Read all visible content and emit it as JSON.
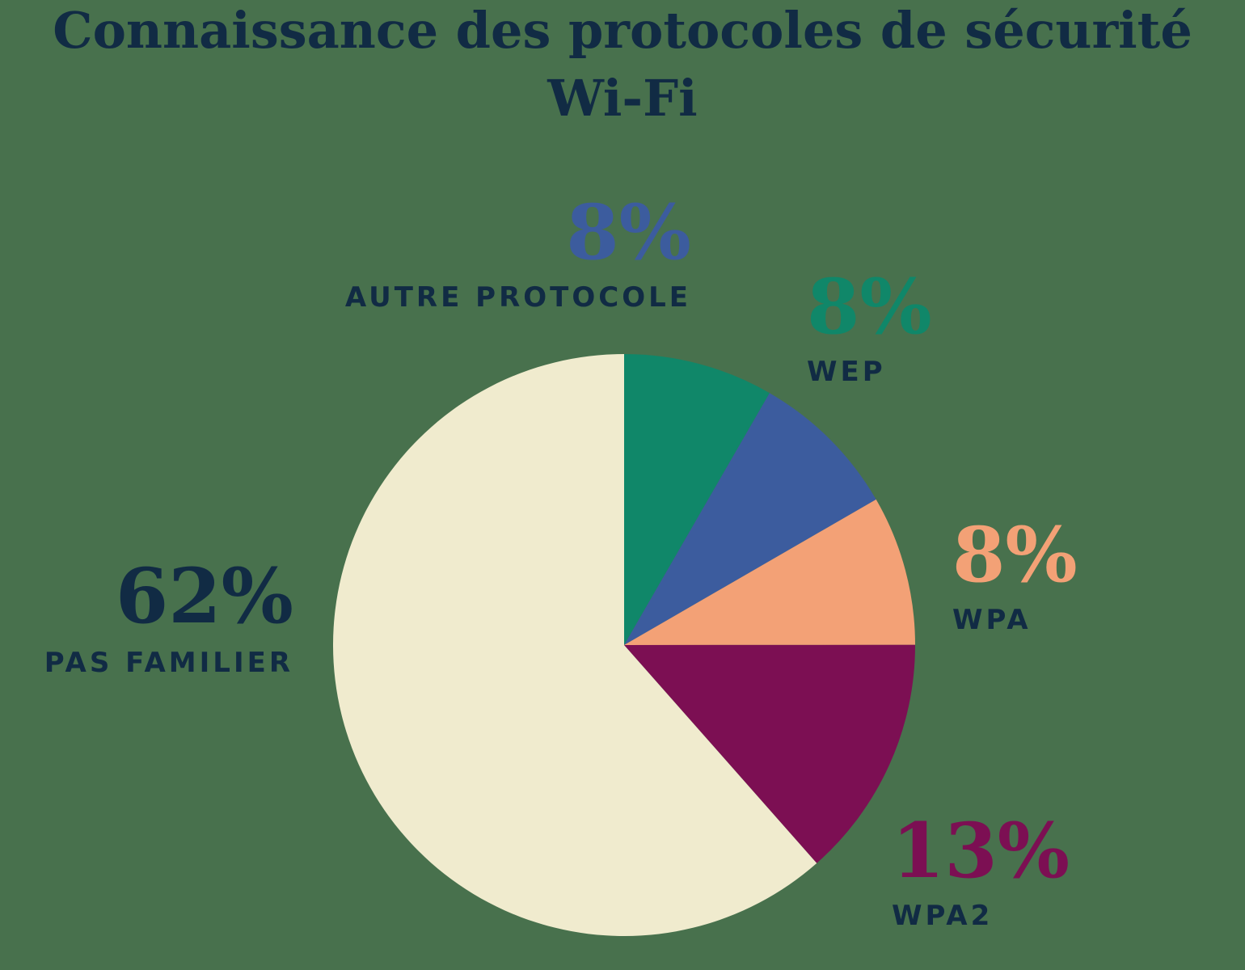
{
  "title": {
    "line1": "Connaissance des protocoles de sécurité",
    "line2": "Wi-Fi"
  },
  "colors": {
    "bg": "#48714d",
    "navy": "#112b44"
  },
  "chart_data": {
    "type": "pie",
    "title": "Connaissance des protocoles de sécurité Wi-Fi",
    "start_angle_deg": 0,
    "direction": "clockwise",
    "legend_position": "around-slices",
    "slices": [
      {
        "label": "WEP",
        "value": 8,
        "display": "8%",
        "color": "#108769"
      },
      {
        "label": "AUTRE PROTOCOLE",
        "value": 8,
        "display": "8%",
        "color": "#3c5c9e"
      },
      {
        "label": "WPA",
        "value": 8,
        "display": "8%",
        "color": "#f3a176"
      },
      {
        "label": "WPA2",
        "value": 13,
        "display": "13%",
        "color": "#7c0f53"
      },
      {
        "label": "PAS FAMILIER",
        "value": 62,
        "display": "62%",
        "color": "#f0ebce"
      }
    ],
    "draw_fractions": [
      8.33,
      8.33,
      8.33,
      13.5,
      61.51
    ]
  }
}
